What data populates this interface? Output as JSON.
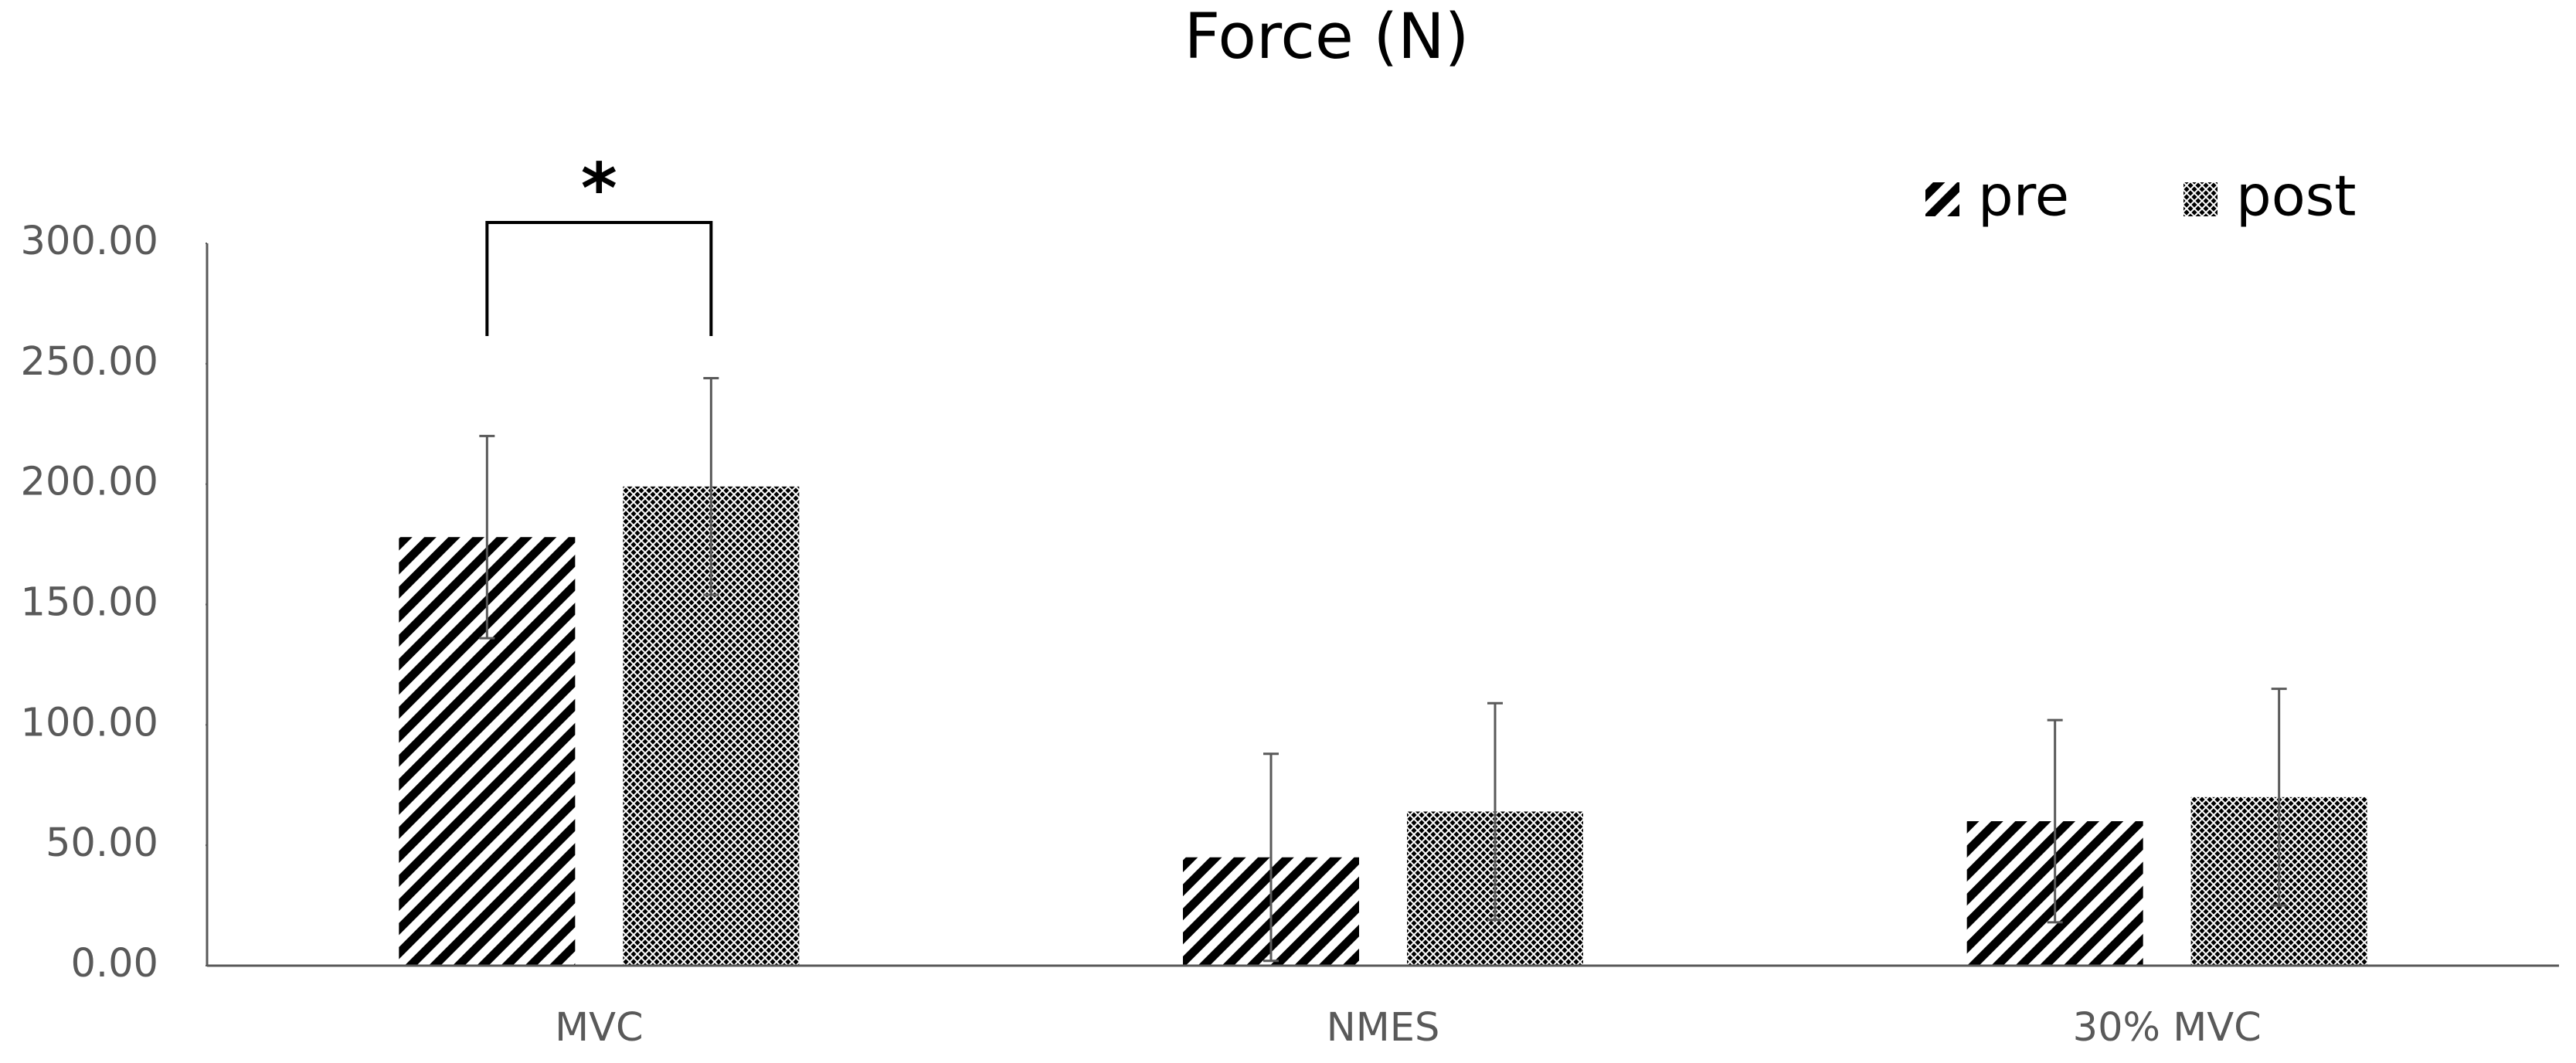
{
  "chart_data": {
    "type": "bar",
    "title": "Force (N)",
    "categories": [
      "MVC",
      "NMES",
      "30% MVC"
    ],
    "series": [
      {
        "name": "pre",
        "color": "#000000",
        "values": [
          178,
          45,
          60
        ],
        "errors": [
          42,
          43,
          42
        ]
      },
      {
        "name": "post",
        "color": "#000000",
        "values": [
          199,
          64,
          70
        ],
        "errors": [
          45,
          45,
          45
        ]
      }
    ],
    "ylim": [
      0,
      300
    ],
    "yticks": [
      {
        "value": 0,
        "label": "0.00"
      },
      {
        "value": 50,
        "label": "50.00"
      },
      {
        "value": 100,
        "label": "100.00"
      },
      {
        "value": 150,
        "label": "150.00"
      },
      {
        "value": 200,
        "label": "200.00"
      },
      {
        "value": 250,
        "label": "250.00"
      },
      {
        "value": 300,
        "label": "300.00"
      }
    ],
    "annotation": "*",
    "legend": "top-right"
  }
}
